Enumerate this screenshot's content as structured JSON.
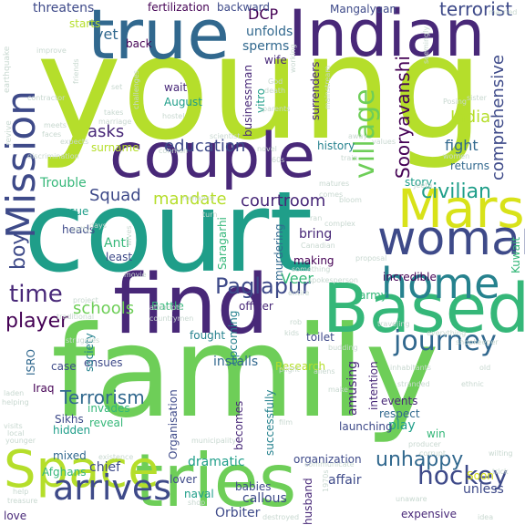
{
  "palette": {
    "dark_purple": "#440154",
    "purple": "#482878",
    "indigo": "#3e4a89",
    "blue": "#31688e",
    "teal": "#26828e",
    "green_teal": "#1f9e89",
    "green": "#35b779",
    "light_green": "#6ece58",
    "yellow_green": "#b5de2b",
    "yellow": "#d8e219",
    "pale": "#c8d8d0"
  },
  "words": [
    {
      "text": "young",
      "color": "yellow_green"
    },
    {
      "text": "court",
      "color": "green_teal"
    },
    {
      "text": "family",
      "color": "light_green"
    },
    {
      "text": "true",
      "color": "blue"
    },
    {
      "text": "Indian",
      "color": "purple"
    },
    {
      "text": "couple",
      "color": "purple"
    },
    {
      "text": "tries",
      "color": "light_green"
    },
    {
      "text": "find",
      "color": "purple"
    },
    {
      "text": "Based",
      "color": "green"
    },
    {
      "text": "Space",
      "color": "yellow_green"
    },
    {
      "text": "Mars",
      "color": "yellow"
    },
    {
      "text": "woman",
      "color": "indigo"
    },
    {
      "text": "home",
      "color": "teal"
    },
    {
      "text": "Mission",
      "color": "indigo"
    },
    {
      "text": "arrives",
      "color": "indigo"
    },
    {
      "text": "village",
      "color": "light_green"
    },
    {
      "text": "journey",
      "color": "blue"
    },
    {
      "text": "hockey",
      "color": "indigo"
    },
    {
      "text": "Paglapur",
      "color": "indigo"
    },
    {
      "text": "time",
      "color": "purple"
    },
    {
      "text": "boy",
      "color": "indigo"
    },
    {
      "text": "player",
      "color": "dark_purple"
    },
    {
      "text": "Terrorism",
      "color": "blue"
    },
    {
      "text": "unhappy",
      "color": "blue"
    },
    {
      "text": "terrorist",
      "color": "indigo"
    },
    {
      "text": "civilian",
      "color": "green_teal"
    },
    {
      "text": "Sooryavanshi",
      "color": "dark_purple"
    },
    {
      "text": "comprehensive",
      "color": "indigo"
    },
    {
      "text": "education",
      "color": "indigo"
    },
    {
      "text": "courtroom",
      "color": "purple"
    },
    {
      "text": "mandate",
      "color": "yellow_green"
    },
    {
      "text": "schools",
      "color": "light_green"
    },
    {
      "text": "Squad",
      "color": "indigo"
    },
    {
      "text": "India",
      "color": "yellow_green"
    },
    {
      "text": "fight",
      "color": "blue"
    },
    {
      "text": "asks",
      "color": "purple"
    },
    {
      "text": "yet",
      "color": "blue"
    },
    {
      "text": "DCP",
      "color": "dark_purple"
    },
    {
      "text": "Mangalyaan",
      "color": "indigo"
    },
    {
      "text": "fertilization",
      "color": "dark_purple"
    },
    {
      "text": "backward",
      "color": "indigo"
    },
    {
      "text": "threatens",
      "color": "indigo"
    },
    {
      "text": "starts",
      "color": "yellow_green"
    },
    {
      "text": "unfolds",
      "color": "blue"
    },
    {
      "text": "sperms",
      "color": "blue"
    },
    {
      "text": "back",
      "color": "dark_purple"
    },
    {
      "text": "wife",
      "color": "purple"
    },
    {
      "text": "wait",
      "color": "purple"
    },
    {
      "text": "August",
      "color": "green_teal"
    },
    {
      "text": "vitro",
      "color": "green_teal"
    },
    {
      "text": "businessman",
      "color": "purple"
    },
    {
      "text": "surrenders",
      "color": "purple"
    },
    {
      "text": "surname",
      "color": "yellow_green"
    },
    {
      "text": "history",
      "color": "teal"
    },
    {
      "text": "story",
      "color": "green_teal"
    },
    {
      "text": "returns",
      "color": "blue"
    },
    {
      "text": "Trouble",
      "color": "green"
    },
    {
      "text": "pursue",
      "color": "green_teal"
    },
    {
      "text": "heads",
      "color": "indigo"
    },
    {
      "text": "Anti",
      "color": "green"
    },
    {
      "text": "least",
      "color": "indigo"
    },
    {
      "text": "bring",
      "color": "purple"
    },
    {
      "text": "making",
      "color": "dark_purple"
    },
    {
      "text": "Veer",
      "color": "green"
    },
    {
      "text": "army",
      "color": "green"
    },
    {
      "text": "incredible",
      "color": "dark_purple"
    },
    {
      "text": "Battle",
      "color": "green"
    },
    {
      "text": "officer",
      "color": "purple"
    },
    {
      "text": "Saragarhi",
      "color": "green"
    },
    {
      "text": "murdering",
      "color": "blue"
    },
    {
      "text": "upcoming",
      "color": "teal"
    },
    {
      "text": "fought",
      "color": "teal"
    },
    {
      "text": "amusing",
      "color": "purple"
    },
    {
      "text": "intention",
      "color": "purple"
    },
    {
      "text": "events",
      "color": "purple"
    },
    {
      "text": "respect",
      "color": "blue"
    },
    {
      "text": "play",
      "color": "green_teal"
    },
    {
      "text": "win",
      "color": "green"
    },
    {
      "text": "launching",
      "color": "indigo"
    },
    {
      "text": "installs",
      "color": "blue"
    },
    {
      "text": "toilet",
      "color": "indigo"
    },
    {
      "text": "Research",
      "color": "yellow_green"
    },
    {
      "text": "case",
      "color": "indigo"
    },
    {
      "text": "ensues",
      "color": "indigo"
    },
    {
      "text": "society",
      "color": "teal"
    },
    {
      "text": "Iraq",
      "color": "dark_purple"
    },
    {
      "text": "Sikhs",
      "color": "indigo"
    },
    {
      "text": "invades",
      "color": "green"
    },
    {
      "text": "hidden",
      "color": "green_teal"
    },
    {
      "text": "reveal",
      "color": "green"
    },
    {
      "text": "mixed",
      "color": "blue"
    },
    {
      "text": "Afghans",
      "color": "green"
    },
    {
      "text": "chief",
      "color": "indigo"
    },
    {
      "text": "dramatic",
      "color": "green_teal"
    },
    {
      "text": "Organisation",
      "color": "indigo"
    },
    {
      "text": "becomes",
      "color": "purple"
    },
    {
      "text": "successfully",
      "color": "teal"
    },
    {
      "text": "organization",
      "color": "indigo"
    },
    {
      "text": "affair",
      "color": "indigo"
    },
    {
      "text": "lover",
      "color": "indigo"
    },
    {
      "text": "babies",
      "color": "indigo"
    },
    {
      "text": "naval",
      "color": "green_teal"
    },
    {
      "text": "callous",
      "color": "indigo"
    },
    {
      "text": "Orbiter",
      "color": "indigo"
    },
    {
      "text": "husband",
      "color": "purple"
    },
    {
      "text": "unless",
      "color": "indigo"
    },
    {
      "text": "Soon",
      "color": "yellow"
    },
    {
      "text": "expensive",
      "color": "purple"
    },
    {
      "text": "love",
      "color": "purple"
    },
    {
      "text": "ISRO",
      "color": "blue"
    },
    {
      "text": "Kuwait",
      "color": "green"
    },
    {
      "text": "earthquake",
      "color": "pale"
    },
    {
      "text": "revive",
      "color": "pale"
    },
    {
      "text": "contractor",
      "color": "pale"
    },
    {
      "text": "discrimination",
      "color": "pale"
    },
    {
      "text": "friends",
      "color": "pale"
    },
    {
      "text": "improve",
      "color": "pale"
    },
    {
      "text": "meets",
      "color": "pale"
    },
    {
      "text": "faces",
      "color": "pale"
    },
    {
      "text": "expects",
      "color": "pale"
    },
    {
      "text": "takes",
      "color": "pale"
    },
    {
      "text": "marriage",
      "color": "pale"
    },
    {
      "text": "hostel",
      "color": "pale"
    },
    {
      "text": "God",
      "color": "pale"
    },
    {
      "text": "death",
      "color": "pale"
    },
    {
      "text": "parents",
      "color": "pale"
    },
    {
      "text": "challenges",
      "color": "pale"
    },
    {
      "text": "scientist",
      "color": "pale"
    },
    {
      "text": "novel",
      "color": "pale"
    },
    {
      "text": "60s",
      "color": "pale"
    },
    {
      "text": "conman",
      "color": "pale"
    },
    {
      "text": "Posing",
      "color": "pale"
    },
    {
      "text": "women",
      "color": "pale"
    },
    {
      "text": "values",
      "color": "pale"
    },
    {
      "text": "married",
      "color": "pale"
    },
    {
      "text": "seemingly",
      "color": "pale"
    },
    {
      "text": "mainstream",
      "color": "pale"
    },
    {
      "text": "working",
      "color": "pale"
    },
    {
      "text": "sister",
      "color": "pale"
    },
    {
      "text": "matures",
      "color": "pale"
    },
    {
      "text": "comes",
      "color": "pale"
    },
    {
      "text": "bloom",
      "color": "pale"
    },
    {
      "text": "romance",
      "color": "pale"
    },
    {
      "text": "turn",
      "color": "pale"
    },
    {
      "text": "ran",
      "color": "pale"
    },
    {
      "text": "complex",
      "color": "pale"
    },
    {
      "text": "Canadian",
      "color": "pale"
    },
    {
      "text": "days",
      "color": "pale"
    },
    {
      "text": "petty",
      "color": "pale"
    },
    {
      "text": "wives",
      "color": "pale"
    },
    {
      "text": "movie",
      "color": "pale"
    },
    {
      "text": "project",
      "color": "pale"
    },
    {
      "text": "traditional",
      "color": "pale"
    },
    {
      "text": "attempts",
      "color": "pale"
    },
    {
      "text": "countrymen",
      "color": "pale"
    },
    {
      "text": "spokesperson",
      "color": "pale"
    },
    {
      "text": "proposal",
      "color": "pale"
    },
    {
      "text": "something",
      "color": "pale"
    },
    {
      "text": "entire",
      "color": "pale"
    },
    {
      "text": "rob",
      "color": "pale"
    },
    {
      "text": "kids",
      "color": "pale"
    },
    {
      "text": "plight",
      "color": "pale"
    },
    {
      "text": "aliens",
      "color": "pale"
    },
    {
      "text": "budding",
      "color": "pale"
    },
    {
      "text": "everything",
      "color": "pale"
    },
    {
      "text": "shopkeeper",
      "color": "pale"
    },
    {
      "text": "inhabitants",
      "color": "pale"
    },
    {
      "text": "stranded",
      "color": "pale"
    },
    {
      "text": "ethnic",
      "color": "pale"
    },
    {
      "text": "old",
      "color": "pale"
    },
    {
      "text": "struggles",
      "color": "pale"
    },
    {
      "text": "laden",
      "color": "pale"
    },
    {
      "text": "helping",
      "color": "pale"
    },
    {
      "text": "local",
      "color": "pale"
    },
    {
      "text": "younger",
      "color": "pale"
    },
    {
      "text": "visits",
      "color": "pale"
    },
    {
      "text": "film",
      "color": "pale"
    },
    {
      "text": "municipality",
      "color": "pale"
    },
    {
      "text": "producer",
      "color": "pale"
    },
    {
      "text": "corrupt",
      "color": "pale"
    },
    {
      "text": "existence",
      "color": "pale"
    },
    {
      "text": "communicate",
      "color": "pale"
    },
    {
      "text": "1970s",
      "color": "pale"
    },
    {
      "text": "help",
      "color": "pale"
    },
    {
      "text": "treasure",
      "color": "pale"
    },
    {
      "text": "shop",
      "color": "pale"
    },
    {
      "text": "destroyed",
      "color": "pale"
    },
    {
      "text": "unaware",
      "color": "pale"
    },
    {
      "text": "idea",
      "color": "pale"
    },
    {
      "text": "wilting",
      "color": "pale"
    },
    {
      "text": "trick",
      "color": "pale"
    },
    {
      "text": "traveling",
      "color": "pale"
    },
    {
      "text": "make",
      "color": "pale"
    },
    {
      "text": "away",
      "color": "pale"
    },
    {
      "text": "train",
      "color": "pale"
    },
    {
      "text": "Jeeta",
      "color": "pale"
    },
    {
      "text": "set",
      "color": "pale"
    }
  ]
}
